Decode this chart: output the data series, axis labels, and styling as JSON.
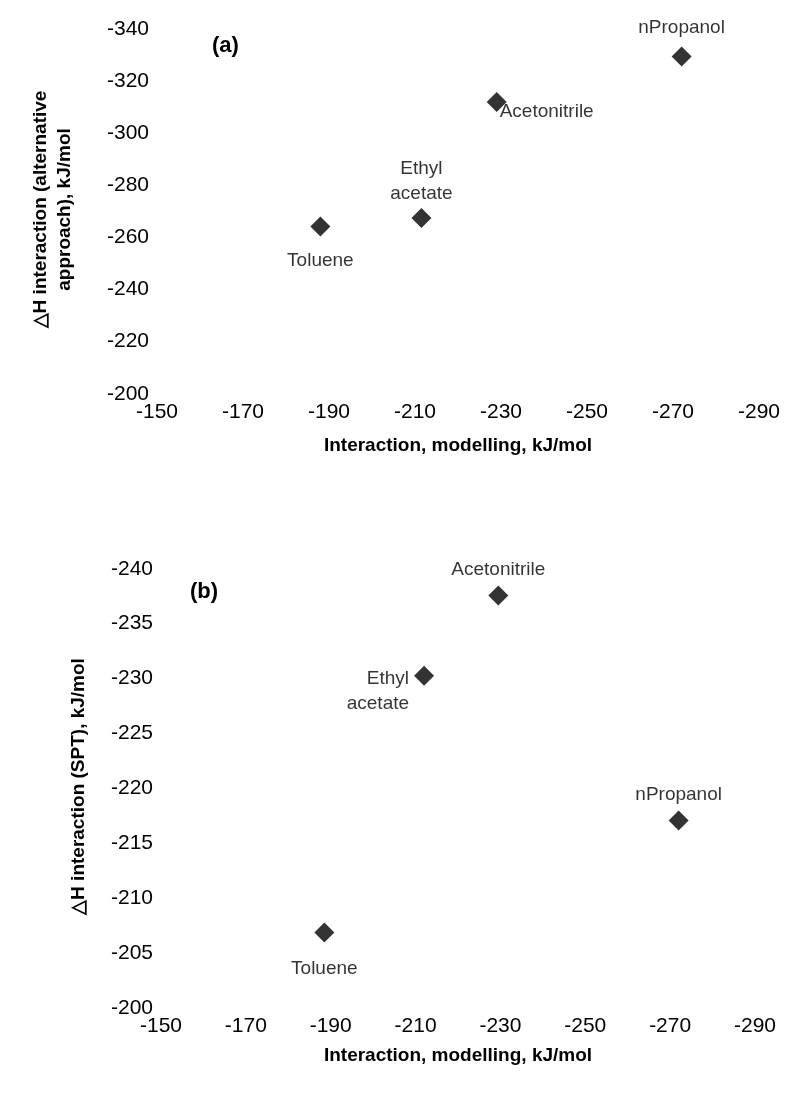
{
  "chart_data": [
    {
      "type": "scatter",
      "title": "(a)",
      "xlabel": "Interaction, modelling, kJ/mol",
      "ylabel": "△H interaction (alternative\napproach), kJ/mol",
      "marker": "diamond",
      "grid": false,
      "legend": false,
      "xlim": [
        -150,
        -290
      ],
      "xticks": [
        -150,
        -170,
        -190,
        -210,
        -230,
        -250,
        -270,
        -290
      ],
      "ylim": [
        -200,
        -340
      ],
      "yticks": [
        -200,
        -220,
        -240,
        -260,
        -280,
        -300,
        -320,
        -340
      ],
      "series": [
        {
          "name": "Toluene",
          "color": "#000000",
          "x": [
            -188
          ],
          "values": [
            -263.5
          ]
        },
        {
          "name": "Ethyl\nacetate",
          "color": "#000000",
          "x": [
            -211.5
          ],
          "values": [
            -266.7
          ]
        },
        {
          "name": "Acetonitrile",
          "color": "#000000",
          "x": [
            -229
          ],
          "values": [
            -311.2
          ]
        },
        {
          "name": "nPropanol",
          "color": "#000000",
          "x": [
            -272
          ],
          "values": [
            -328.7
          ]
        }
      ]
    },
    {
      "type": "scatter",
      "title": "(b)",
      "xlabel": "Interaction, modelling, kJ/mol",
      "ylabel": "△H interaction (SPT), kJ/mol",
      "marker": "diamond",
      "grid": false,
      "legend": false,
      "xlim": [
        -150,
        -290
      ],
      "xticks": [
        -150,
        -170,
        -190,
        -210,
        -230,
        -250,
        -270,
        -290
      ],
      "ylim": [
        -200,
        -240
      ],
      "yticks": [
        -200,
        -205,
        -210,
        -215,
        -220,
        -225,
        -230,
        -235,
        -240
      ],
      "series": [
        {
          "name": "Toluene",
          "color": "#000000",
          "x": [
            -188.5
          ],
          "values": [
            -206.7
          ]
        },
        {
          "name": "Ethyl\nacetate",
          "color": "#000000",
          "x": [
            -212
          ],
          "values": [
            -230.1
          ]
        },
        {
          "name": "Acetonitrile",
          "color": "#000000",
          "x": [
            -229.5
          ],
          "values": [
            -237.4
          ]
        },
        {
          "name": "nPropanol",
          "color": "#000000",
          "x": [
            -272
          ],
          "values": [
            -216.9
          ]
        }
      ]
    }
  ]
}
